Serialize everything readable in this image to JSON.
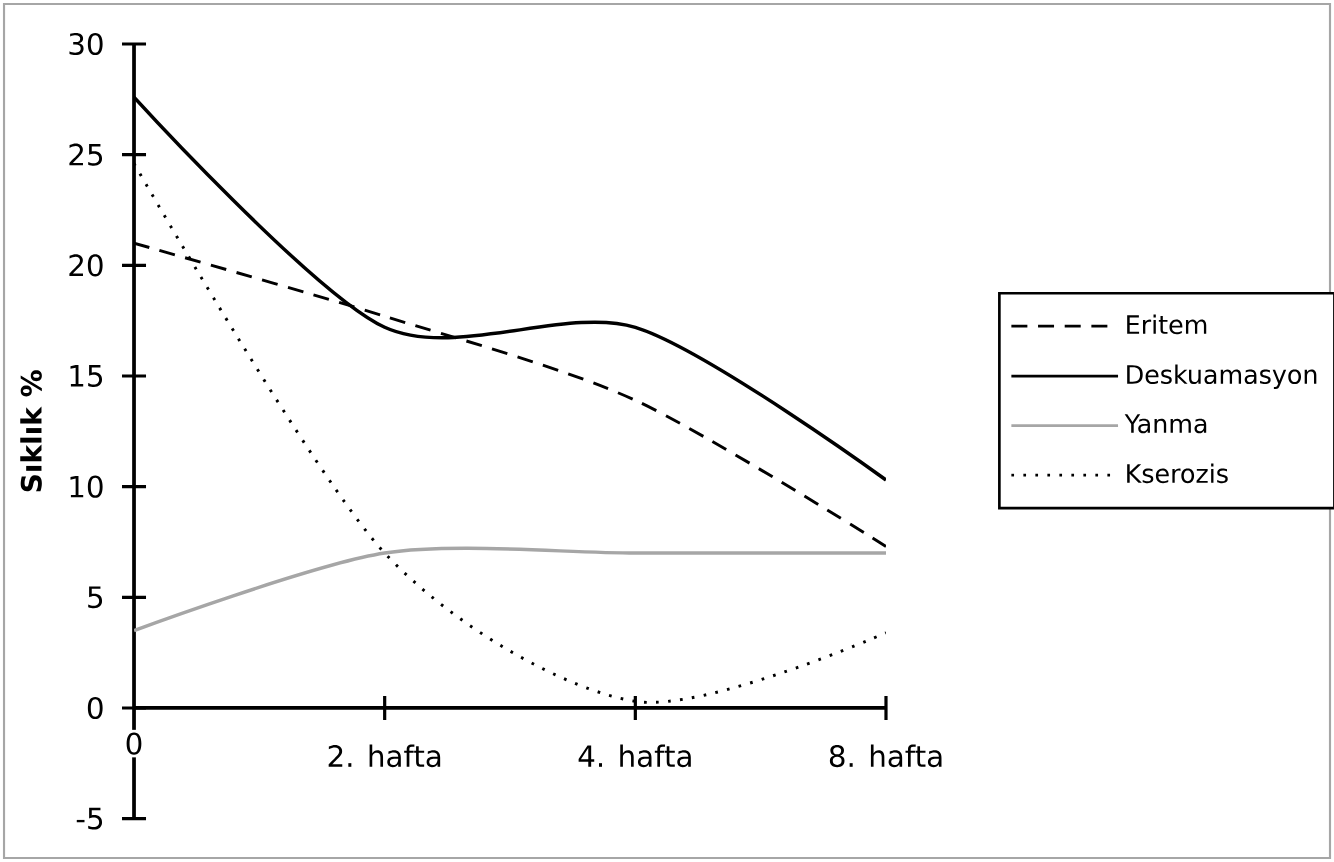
{
  "chart_data": {
    "type": "line",
    "ylabel": "Sıklık %",
    "categories": [
      "0",
      "2. hafta",
      "4. hafta",
      "8. hafta"
    ],
    "ylim": [
      -5,
      30
    ],
    "yticks": [
      -5,
      0,
      5,
      10,
      15,
      20,
      25,
      30
    ],
    "grid": false,
    "legend": "right",
    "marker": "none",
    "series": [
      {
        "name": "Eritem",
        "color": "#000000",
        "line_style": "dashed",
        "values": [
          21.0,
          17.7,
          13.9,
          7.3
        ]
      },
      {
        "name": "Deskuamasyon",
        "color": "#000000",
        "line_style": "solid",
        "values": [
          27.6,
          17.2,
          17.2,
          10.3
        ]
      },
      {
        "name": "Yanma",
        "color": "#a6a6a6",
        "line_style": "solid",
        "values": [
          3.5,
          7.0,
          7.0,
          7.0
        ]
      },
      {
        "name": "Kserozis",
        "color": "#000000",
        "line_style": "dotted",
        "values": [
          24.6,
          7.0,
          0.3,
          3.4
        ]
      }
    ]
  }
}
